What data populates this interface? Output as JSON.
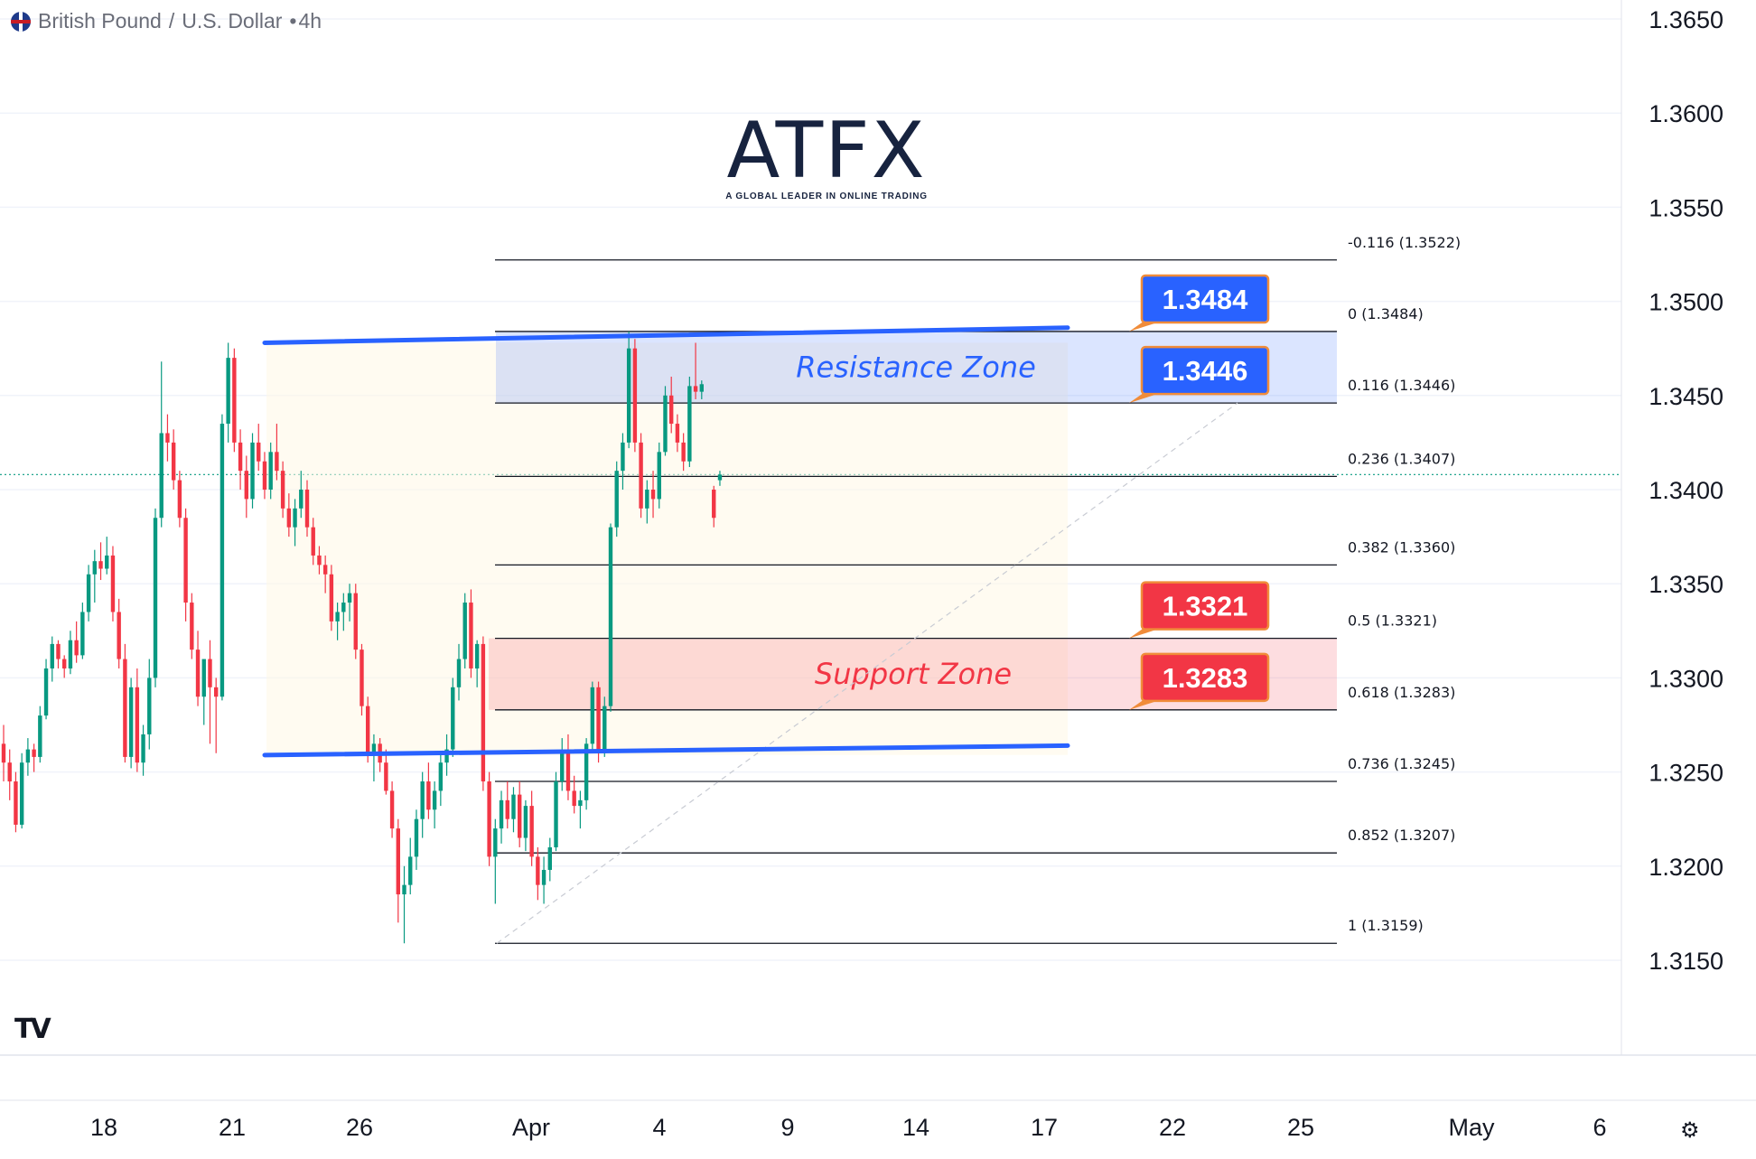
{
  "header": {
    "symbol": "British Pound",
    "separator": "/",
    "quote": "U.S. Dollar",
    "interval": "4h",
    "flag_icon": "uk-flag-icon"
  },
  "logo": {
    "word": "ATFX",
    "tagline": "A GLOBAL LEADER IN ONLINE TRADING"
  },
  "chart_data": {
    "type": "candlestick",
    "instrument": "GBP/USD",
    "y_axis": {
      "ticks": [
        "1.3650",
        "1.3600",
        "1.3550",
        "1.3500",
        "1.3450",
        "1.3400",
        "1.3350",
        "1.3300",
        "1.3250",
        "1.3200",
        "1.3150"
      ],
      "range": [
        1.3114,
        1.365
      ]
    },
    "x_axis": {
      "ticks": [
        "18",
        "21",
        "26",
        "Apr",
        "4",
        "9",
        "14",
        "17",
        "22",
        "25",
        "May",
        "6"
      ]
    },
    "current_price": 1.3408,
    "fibonacci": [
      {
        "ratio": "-0.116",
        "price": "1.3522",
        "label": "-0.116 (1.3522)"
      },
      {
        "ratio": "0",
        "price": "1.3484",
        "label": "0 (1.3484)"
      },
      {
        "ratio": "0.116",
        "price": "1.3446",
        "label": "0.116 (1.3446)"
      },
      {
        "ratio": "0.236",
        "price": "1.3407",
        "label": "0.236 (1.3407)"
      },
      {
        "ratio": "0.382",
        "price": "1.3360",
        "label": "0.382 (1.3360)"
      },
      {
        "ratio": "0.5",
        "price": "1.3321",
        "label": "0.5 (1.3321)"
      },
      {
        "ratio": "0.618",
        "price": "1.3283",
        "label": "0.618 (1.3283)"
      },
      {
        "ratio": "0.736",
        "price": "1.3245",
        "label": "0.736 (1.3245)"
      },
      {
        "ratio": "0.852",
        "price": "1.3207",
        "label": "0.852 (1.3207)"
      },
      {
        "ratio": "1",
        "price": "1.3159",
        "label": "1 (1.3159)"
      }
    ],
    "zones": [
      {
        "name": "Resistance Zone",
        "from": 1.3446,
        "to": 1.3484,
        "color": "#2962ff"
      },
      {
        "name": "Support Zone",
        "from": 1.3283,
        "to": 1.3321,
        "color": "#f23645"
      }
    ],
    "callouts": [
      {
        "text": "1.3484",
        "price": 1.3484,
        "color": "#2962ff"
      },
      {
        "text": "1.3446",
        "price": 1.3446,
        "color": "#2962ff"
      },
      {
        "text": "1.3321",
        "price": 1.3321,
        "color": "#f23645"
      },
      {
        "text": "1.3283",
        "price": 1.3283,
        "color": "#f23645"
      }
    ],
    "trendlines": [
      {
        "name": "upper-channel",
        "from_price": 1.3478,
        "to_price": 1.3486
      },
      {
        "name": "lower-channel",
        "from_price": 1.3259,
        "to_price": 1.3264
      }
    ],
    "colors": {
      "up": "#089981",
      "down": "#f23645",
      "trendline": "#2962ff",
      "fib_line": "#131722"
    },
    "candles": [
      [
        1.3265,
        1.3275,
        1.3245,
        1.3255
      ],
      [
        1.3255,
        1.3262,
        1.3235,
        1.3245
      ],
      [
        1.3245,
        1.325,
        1.3218,
        1.3222
      ],
      [
        1.3222,
        1.326,
        1.322,
        1.3255
      ],
      [
        1.3255,
        1.3268,
        1.3248,
        1.3262
      ],
      [
        1.3262,
        1.3265,
        1.325,
        1.3258
      ],
      [
        1.3258,
        1.3285,
        1.3255,
        1.328
      ],
      [
        1.328,
        1.331,
        1.3278,
        1.3305
      ],
      [
        1.3305,
        1.3322,
        1.3298,
        1.3318
      ],
      [
        1.3318,
        1.332,
        1.3305,
        1.331
      ],
      [
        1.331,
        1.3312,
        1.33,
        1.3305
      ],
      [
        1.3305,
        1.3325,
        1.3302,
        1.332
      ],
      [
        1.332,
        1.333,
        1.3308,
        1.3312
      ],
      [
        1.3312,
        1.334,
        1.331,
        1.3335
      ],
      [
        1.3335,
        1.336,
        1.333,
        1.3355
      ],
      [
        1.3355,
        1.3368,
        1.334,
        1.3362
      ],
      [
        1.3362,
        1.3372,
        1.3352,
        1.3358
      ],
      [
        1.3358,
        1.3375,
        1.3355,
        1.3365
      ],
      [
        1.3365,
        1.337,
        1.333,
        1.3335
      ],
      [
        1.3335,
        1.3342,
        1.3305,
        1.331
      ],
      [
        1.331,
        1.3318,
        1.3255,
        1.3258
      ],
      [
        1.3258,
        1.33,
        1.3252,
        1.3295
      ],
      [
        1.3295,
        1.3305,
        1.325,
        1.3255
      ],
      [
        1.3255,
        1.3275,
        1.3248,
        1.327
      ],
      [
        1.327,
        1.331,
        1.3262,
        1.33
      ],
      [
        1.33,
        1.339,
        1.3295,
        1.3385
      ],
      [
        1.3385,
        1.3468,
        1.338,
        1.343
      ],
      [
        1.343,
        1.344,
        1.3415,
        1.3425
      ],
      [
        1.3425,
        1.3432,
        1.34,
        1.3405
      ],
      [
        1.3405,
        1.341,
        1.338,
        1.3385
      ],
      [
        1.3385,
        1.339,
        1.333,
        1.334
      ],
      [
        1.334,
        1.3345,
        1.331,
        1.3315
      ],
      [
        1.3315,
        1.3325,
        1.3285,
        1.329
      ],
      [
        1.329,
        1.3295,
        1.3275,
        1.331
      ],
      [
        1.331,
        1.332,
        1.3265,
        1.3295
      ],
      [
        1.3295,
        1.33,
        1.326,
        1.329
      ],
      [
        1.329,
        1.344,
        1.3288,
        1.3435
      ],
      [
        1.3435,
        1.3478,
        1.3425,
        1.347
      ],
      [
        1.347,
        1.3475,
        1.342,
        1.3425
      ],
      [
        1.3425,
        1.3432,
        1.34,
        1.341
      ],
      [
        1.341,
        1.3418,
        1.3385,
        1.3395
      ],
      [
        1.3395,
        1.343,
        1.339,
        1.3425
      ],
      [
        1.3425,
        1.3435,
        1.341,
        1.3415
      ],
      [
        1.3415,
        1.342,
        1.3395,
        1.34
      ],
      [
        1.34,
        1.3425,
        1.3395,
        1.342
      ],
      [
        1.342,
        1.3435,
        1.3405,
        1.341
      ],
      [
        1.341,
        1.3415,
        1.3385,
        1.339
      ],
      [
        1.339,
        1.3398,
        1.3375,
        1.338
      ],
      [
        1.338,
        1.3395,
        1.337,
        1.339
      ],
      [
        1.339,
        1.341,
        1.3385,
        1.34
      ],
      [
        1.34,
        1.3405,
        1.3375,
        1.338
      ],
      [
        1.338,
        1.3385,
        1.336,
        1.3365
      ],
      [
        1.3365,
        1.337,
        1.3355,
        1.336
      ],
      [
        1.336,
        1.3365,
        1.3345,
        1.3355
      ],
      [
        1.3355,
        1.336,
        1.3325,
        1.333
      ],
      [
        1.333,
        1.334,
        1.332,
        1.3335
      ],
      [
        1.3335,
        1.3345,
        1.3325,
        1.334
      ],
      [
        1.334,
        1.335,
        1.333,
        1.3345
      ],
      [
        1.3345,
        1.335,
        1.331,
        1.3315
      ],
      [
        1.3315,
        1.3318,
        1.328,
        1.3285
      ],
      [
        1.3285,
        1.329,
        1.3255,
        1.326
      ],
      [
        1.326,
        1.327,
        1.3245,
        1.3265
      ],
      [
        1.3265,
        1.3268,
        1.325,
        1.3255
      ],
      [
        1.3255,
        1.3262,
        1.3238,
        1.324
      ],
      [
        1.324,
        1.3245,
        1.3215,
        1.322
      ],
      [
        1.322,
        1.3225,
        1.317,
        1.3185
      ],
      [
        1.3185,
        1.32,
        1.3159,
        1.319
      ],
      [
        1.319,
        1.3215,
        1.3185,
        1.3205
      ],
      [
        1.3205,
        1.323,
        1.3198,
        1.3225
      ],
      [
        1.3225,
        1.325,
        1.3215,
        1.3245
      ],
      [
        1.3245,
        1.3255,
        1.3225,
        1.323
      ],
      [
        1.323,
        1.3245,
        1.322,
        1.324
      ],
      [
        1.324,
        1.326,
        1.3232,
        1.3255
      ],
      [
        1.3255,
        1.327,
        1.3248,
        1.3262
      ],
      [
        1.3262,
        1.33,
        1.3258,
        1.3295
      ],
      [
        1.3295,
        1.3318,
        1.3288,
        1.331
      ],
      [
        1.331,
        1.3345,
        1.3305,
        1.334
      ],
      [
        1.334,
        1.3347,
        1.33,
        1.3305
      ],
      [
        1.3305,
        1.332,
        1.3295,
        1.3318
      ],
      [
        1.3318,
        1.3322,
        1.324,
        1.3245
      ],
      [
        1.3245,
        1.325,
        1.32,
        1.3205
      ],
      [
        1.3205,
        1.3225,
        1.318,
        1.322
      ],
      [
        1.322,
        1.324,
        1.3212,
        1.3235
      ],
      [
        1.3235,
        1.3245,
        1.322,
        1.3225
      ],
      [
        1.3225,
        1.3242,
        1.3218,
        1.3238
      ],
      [
        1.3238,
        1.3245,
        1.321,
        1.3215
      ],
      [
        1.3215,
        1.3235,
        1.3208,
        1.3232
      ],
      [
        1.3232,
        1.324,
        1.32,
        1.3205
      ],
      [
        1.3205,
        1.321,
        1.3182,
        1.319
      ],
      [
        1.319,
        1.3205,
        1.318,
        1.3198
      ],
      [
        1.3198,
        1.3215,
        1.3192,
        1.321
      ],
      [
        1.321,
        1.325,
        1.3208,
        1.3245
      ],
      [
        1.3245,
        1.3268,
        1.324,
        1.326
      ],
      [
        1.326,
        1.327,
        1.3235,
        1.324
      ],
      [
        1.324,
        1.3248,
        1.3228,
        1.3232
      ],
      [
        1.3232,
        1.324,
        1.322,
        1.3235
      ],
      [
        1.3235,
        1.3268,
        1.323,
        1.3265
      ],
      [
        1.3265,
        1.3298,
        1.3262,
        1.3295
      ],
      [
        1.3295,
        1.3298,
        1.3255,
        1.326
      ],
      [
        1.326,
        1.329,
        1.3258,
        1.3285
      ],
      [
        1.3285,
        1.3382,
        1.3282,
        1.338
      ],
      [
        1.338,
        1.3415,
        1.3375,
        1.341
      ],
      [
        1.341,
        1.343,
        1.34,
        1.3425
      ],
      [
        1.3425,
        1.3484,
        1.3422,
        1.3475
      ],
      [
        1.3475,
        1.348,
        1.342,
        1.3425
      ],
      [
        1.3425,
        1.343,
        1.3385,
        1.339
      ],
      [
        1.339,
        1.3405,
        1.3382,
        1.34
      ],
      [
        1.34,
        1.341,
        1.3385,
        1.3395
      ],
      [
        1.3395,
        1.3425,
        1.339,
        1.342
      ],
      [
        1.342,
        1.3455,
        1.3418,
        1.345
      ],
      [
        1.345,
        1.346,
        1.343,
        1.3435
      ],
      [
        1.3435,
        1.344,
        1.342,
        1.3425
      ],
      [
        1.3425,
        1.343,
        1.341,
        1.3415
      ],
      [
        1.3415,
        1.346,
        1.3412,
        1.3455
      ],
      [
        1.3455,
        1.3478,
        1.3448,
        1.3452
      ],
      [
        1.3452,
        1.3458,
        1.3448,
        1.3456
      ],
      null,
      [
        1.34,
        1.3402,
        1.338,
        1.3385
      ],
      [
        1.3405,
        1.341,
        1.3402,
        1.3408
      ]
    ]
  }
}
